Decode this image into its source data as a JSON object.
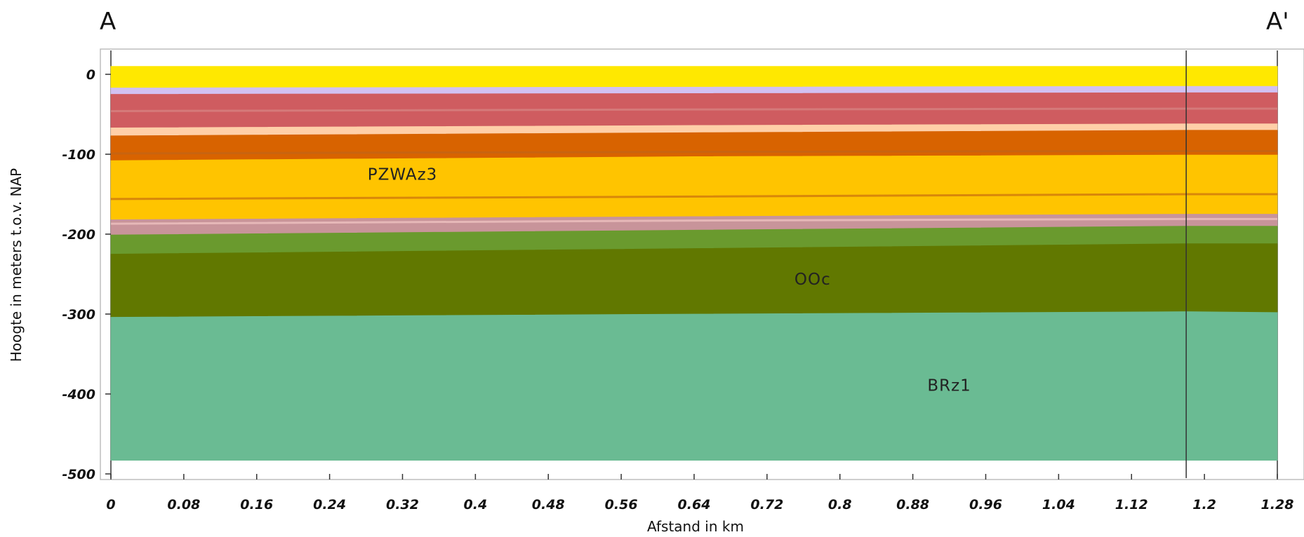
{
  "chart_data": {
    "type": "area",
    "section_labels": {
      "start": "A",
      "end": "A'"
    },
    "xlabel": "Afstand in km",
    "ylabel": "Hoogte in meters t.o.v. NAP",
    "xlim": [
      0,
      1.28
    ],
    "ylim": [
      -500,
      0
    ],
    "x_ticks": [
      "0",
      "0.08",
      "0.16",
      "0.24",
      "0.32",
      "0.4",
      "0.48",
      "0.56",
      "0.64",
      "0.72",
      "0.8",
      "0.88",
      "0.96",
      "1.04",
      "1.12",
      "1.2",
      "1.28"
    ],
    "y_ticks": [
      "0",
      "-100",
      "-200",
      "-300",
      "-400",
      "-500"
    ],
    "vertical_line_km": 1.18,
    "x": [
      0,
      0.64,
      1.18,
      1.28
    ],
    "layers": [
      {
        "top": [
          10,
          10,
          10,
          10
        ],
        "bottom": [
          -17,
          -16,
          -15,
          -15
        ],
        "color": "#ffe800"
      },
      {
        "top": [
          -17,
          -16,
          -15,
          -15
        ],
        "bottom": [
          -25,
          -24,
          -23,
          -23
        ],
        "color": "#d2c1f3"
      },
      {
        "top": [
          -25,
          -24,
          -23,
          -23
        ],
        "bottom": [
          -67,
          -64,
          -62,
          -62
        ],
        "color": "#cf5c60"
      },
      {
        "top": [
          -67,
          -64,
          -62,
          -62
        ],
        "bottom": [
          -77,
          -73,
          -70,
          -70
        ],
        "color": "#ffcfa8"
      },
      {
        "top": [
          -77,
          -73,
          -70,
          -70
        ],
        "bottom": [
          -108,
          -103,
          -101,
          -101
        ],
        "color": "#d86300"
      },
      {
        "top": [
          -108,
          -103,
          -101,
          -101
        ],
        "bottom": [
          -182,
          -178,
          -175,
          -175
        ],
        "color": "#ffc400"
      },
      {
        "top": [
          -182,
          -178,
          -175,
          -175
        ],
        "bottom": [
          -201,
          -195,
          -190,
          -190
        ],
        "color": "#c8949a"
      },
      {
        "top": [
          -201,
          -195,
          -190,
          -190
        ],
        "bottom": [
          -225,
          -218,
          -212,
          -212
        ],
        "color": "#6a9a2e"
      },
      {
        "top": [
          -225,
          -218,
          -212,
          -212
        ],
        "bottom": [
          -304,
          -300,
          -297,
          -298
        ],
        "color": "#617800"
      },
      {
        "top": [
          -304,
          -300,
          -297,
          -298
        ],
        "bottom": [
          -483,
          -483,
          -483,
          -483
        ],
        "color": "#6abb93"
      }
    ],
    "boundary_lines": [
      {
        "y": [
          -46,
          -44,
          -43,
          -43
        ],
        "color": "#d57a7a"
      },
      {
        "y": [
          -99,
          -97,
          -96,
          -96
        ],
        "color": "#c86410"
      },
      {
        "y": [
          -156,
          -153,
          -150,
          -150
        ],
        "color": "#d8870a"
      },
      {
        "y": [
          -187,
          -183,
          -181,
          -181
        ],
        "color": "#e6b8b8"
      }
    ],
    "annotations": [
      {
        "text": "PZWAz3",
        "x": 0.32,
        "y": -132
      },
      {
        "text": "OOc",
        "x": 0.77,
        "y": -263
      },
      {
        "text": "BRz1",
        "x": 0.92,
        "y": -396
      }
    ]
  }
}
